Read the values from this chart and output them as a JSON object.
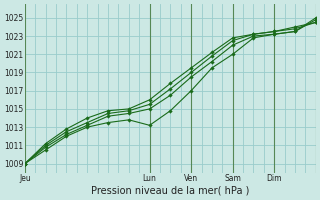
{
  "xlabel": "Pression niveau de la mer( hPa )",
  "background_color": "#cce8e4",
  "grid_color": "#99cccc",
  "line_color": "#1a6b1a",
  "ylim": [
    1008.0,
    1026.5
  ],
  "xlim": [
    0,
    168
  ],
  "yticks": [
    1009,
    1011,
    1013,
    1015,
    1017,
    1019,
    1021,
    1023,
    1025
  ],
  "xtick_positions": [
    0,
    72,
    96,
    120,
    144,
    168
  ],
  "xtick_labels": [
    "Jeu",
    "Lun",
    "Ven",
    "Sam",
    "Dim",
    ""
  ],
  "day_lines": [
    0,
    72,
    96,
    120,
    144,
    168
  ],
  "series": [
    {
      "x": [
        0,
        12,
        24,
        36,
        48,
        60,
        72,
        84,
        96,
        108,
        120,
        132,
        144,
        156,
        168
      ],
      "y": [
        1009.0,
        1010.5,
        1012.0,
        1013.0,
        1013.5,
        1013.8,
        1013.2,
        1014.8,
        1017.0,
        1019.5,
        1021.0,
        1022.8,
        1023.2,
        1023.5,
        1024.8
      ]
    },
    {
      "x": [
        0,
        12,
        24,
        36,
        48,
        60,
        72,
        84,
        96,
        108,
        120,
        132,
        144,
        156,
        168
      ],
      "y": [
        1009.0,
        1010.8,
        1012.2,
        1013.2,
        1014.2,
        1014.5,
        1015.0,
        1016.5,
        1018.5,
        1020.2,
        1022.0,
        1023.0,
        1023.2,
        1023.5,
        1025.0
      ]
    },
    {
      "x": [
        0,
        12,
        24,
        36,
        48,
        60,
        72,
        84,
        96,
        108,
        120,
        132,
        144,
        156,
        168
      ],
      "y": [
        1009.0,
        1011.0,
        1012.5,
        1013.5,
        1014.5,
        1014.8,
        1015.5,
        1017.2,
        1019.0,
        1020.8,
        1022.5,
        1023.2,
        1023.5,
        1024.0,
        1024.5
      ]
    },
    {
      "x": [
        0,
        12,
        24,
        36,
        48,
        60,
        72,
        84,
        96,
        108,
        120,
        132,
        144,
        156,
        168
      ],
      "y": [
        1009.0,
        1011.2,
        1012.8,
        1014.0,
        1014.8,
        1015.0,
        1016.0,
        1017.8,
        1019.5,
        1021.2,
        1022.8,
        1023.2,
        1023.5,
        1023.8,
        1024.5
      ]
    }
  ]
}
